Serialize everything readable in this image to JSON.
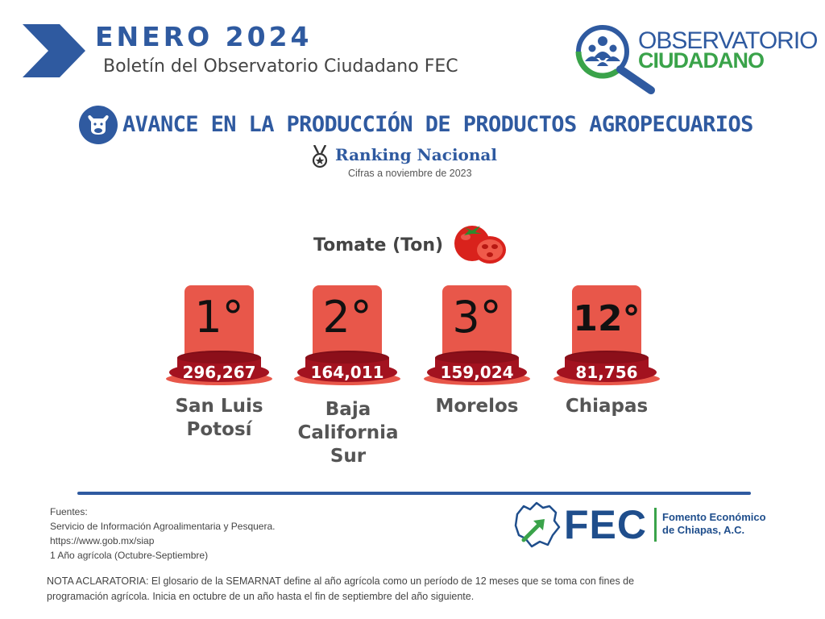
{
  "header": {
    "month_title": "ENERO  2024",
    "subtitle": "Boletín del Observatorio Ciudadano FEC"
  },
  "observatorio_logo": {
    "line1": "OBSERVATORIO",
    "line2": "CIUDADANO"
  },
  "section": {
    "title": "AVANCE EN LA PRODUCCIÓN DE PRODUCTOS AGROPECUARIOS",
    "ranking_title": "Ranking Nacional",
    "figures_note": "Cifras a noviembre de 2023"
  },
  "product": {
    "label": "Tomate (Ton)"
  },
  "podiums": [
    {
      "rank": "1°",
      "value": "296,267",
      "state": "San Luis Potosí"
    },
    {
      "rank": "2°",
      "value": "164,011",
      "state": "Baja California Sur"
    },
    {
      "rank": "3°",
      "value": "159,024",
      "state": "Morelos"
    },
    {
      "rank": "12°",
      "value": "81,756",
      "state": "Chiapas"
    }
  ],
  "sources": {
    "heading": "Fuentes:",
    "line1": "Servicio de Información Agroalimentaria y Pesquera.",
    "line2": "https://www.gob.mx/siap",
    "line3": "1 Año agrícola (Octubre-Septiembre)"
  },
  "fec_logo": {
    "acronym": "FEC",
    "name_line1": "Fomento Económico",
    "name_line2": "de Chiapas, A.C."
  },
  "note": "NOTA ACLARATORIA: El glosario de la SEMARNAT define al año agrícola como un período de 12 meses que se toma con fines de programación agrícola. Inicia en octubre de un año hasta el fin de septiembre del año siguiente.",
  "colors": {
    "brand_blue": "#2f5aa0",
    "brand_green": "#3aa34a",
    "podium_red": "#e8574a",
    "podium_base": "#a3121f"
  }
}
